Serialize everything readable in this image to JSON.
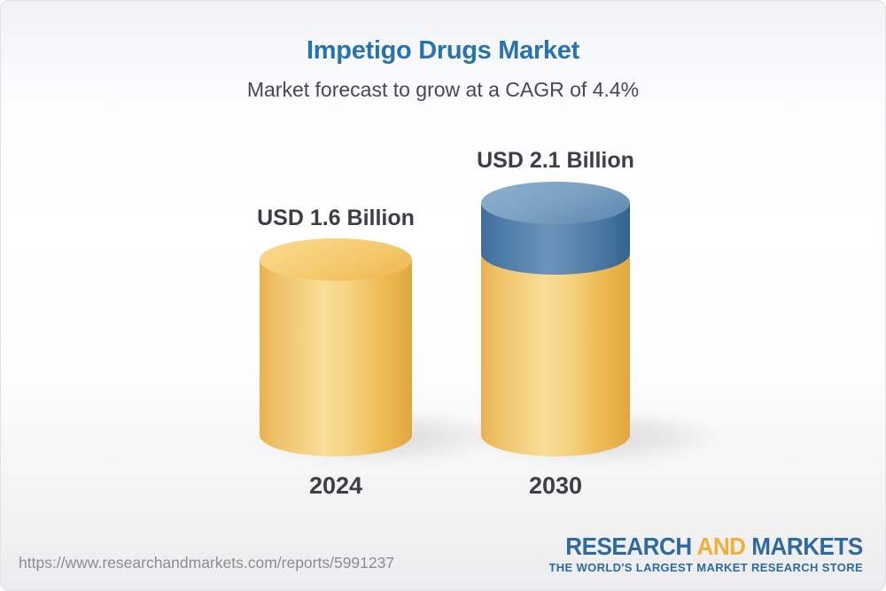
{
  "chart_data": {
    "type": "bar",
    "style": "3d-cylinder-infographic",
    "title": "Impetigo Drugs Market",
    "subtitle": "Market forecast to grow at a CAGR of 4.4%",
    "cagr_percent": 4.4,
    "unit": "USD Billion",
    "categories": [
      "2024",
      "2030"
    ],
    "values": [
      1.6,
      2.1
    ],
    "value_labels": [
      "USD 1.6 Billion",
      "USD 2.1 Billion"
    ],
    "segments": {
      "2024": [
        {
          "name": "base",
          "value": 1.6,
          "color": "gold"
        }
      ],
      "2030": [
        {
          "name": "base",
          "value": 1.6,
          "color": "gold"
        },
        {
          "name": "growth",
          "value": 0.5,
          "color": "blue"
        }
      ]
    },
    "grid": false,
    "legend": false,
    "axes_shown": false
  },
  "footer": {
    "url": "https://www.researchandmarkets.com/reports/5991237",
    "logo": {
      "part1": "RESEARCH",
      "part2": "AND",
      "part3": "MARKETS",
      "tagline": "THE WORLD'S LARGEST MARKET RESEARCH STORE"
    }
  },
  "colors": {
    "title_blue": "#2673ae",
    "text_dark": "#3b4045",
    "text_dark_2": "#46494e",
    "gold_main": "#f5cd79",
    "gold_light": "#f9dd98",
    "gold_dark": "#e2a63e",
    "blue_main": "#4a7aa5",
    "blue_light": "#8cadcb",
    "blue_dark": "#34648e",
    "url_gray": "#8d8d8d",
    "logo_blue": "#2e6a9f",
    "logo_yellow": "#f0b13a"
  }
}
